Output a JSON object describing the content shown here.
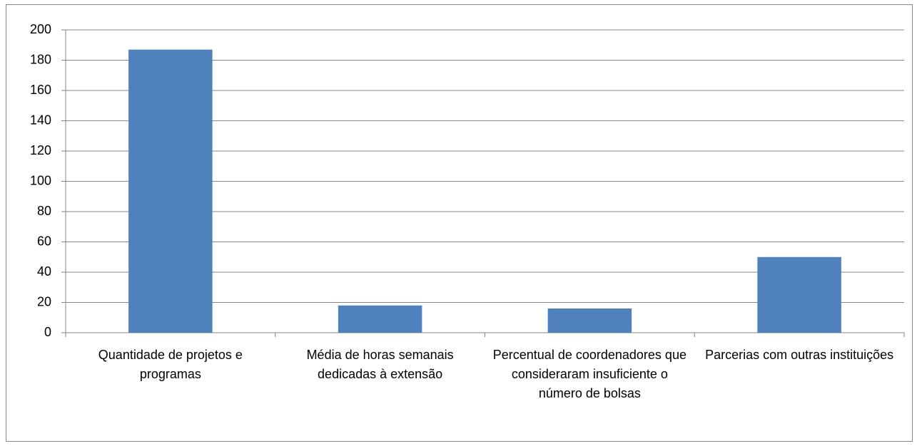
{
  "chart_data": {
    "type": "bar",
    "categories": [
      "Quantidade de projetos e programas",
      "Média de horas semanais dedicadas à extensão",
      "Percentual de coordenadores que consideraram insuficiente o número de bolsas",
      "Parcerias com outras instituições"
    ],
    "values": [
      187,
      18,
      16,
      50
    ],
    "color": "#4f81bd",
    "ylim": [
      0,
      200
    ],
    "yticks": [
      0,
      20,
      40,
      60,
      80,
      100,
      120,
      140,
      160,
      180,
      200
    ],
    "grid": true
  }
}
